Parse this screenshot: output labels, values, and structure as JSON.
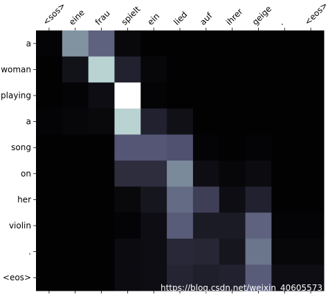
{
  "chart_data": {
    "type": "heatmap",
    "colormap": "bone",
    "vmin": 0,
    "vmax": 1,
    "grid": false,
    "x_tick_labels": [
      "<sos>",
      "eine",
      "frau",
      "spielt",
      "ein",
      "lied",
      "auf",
      "ihrer",
      "geige",
      ".",
      "<eos>"
    ],
    "y_tick_labels": [
      "a",
      "woman",
      "playing",
      "a",
      "song",
      "on",
      "her",
      "violin",
      ".",
      "<eos>"
    ],
    "values": [
      [
        0.02,
        0.58,
        0.42,
        0.04,
        0.01,
        0.01,
        0.01,
        0.01,
        0.01,
        0.01,
        0.01
      ],
      [
        0.01,
        0.08,
        0.8,
        0.15,
        0.03,
        0.01,
        0.01,
        0.01,
        0.01,
        0.01,
        0.01
      ],
      [
        0.01,
        0.02,
        0.06,
        1.0,
        0.02,
        0.01,
        0.01,
        0.01,
        0.01,
        0.01,
        0.01
      ],
      [
        0.02,
        0.03,
        0.04,
        0.8,
        0.15,
        0.07,
        0.01,
        0.01,
        0.01,
        0.01,
        0.01
      ],
      [
        0.01,
        0.01,
        0.01,
        0.38,
        0.38,
        0.36,
        0.02,
        0.01,
        0.02,
        0.01,
        0.01
      ],
      [
        0.01,
        0.01,
        0.01,
        0.2,
        0.2,
        0.55,
        0.06,
        0.03,
        0.05,
        0.01,
        0.01
      ],
      [
        0.01,
        0.01,
        0.01,
        0.04,
        0.1,
        0.45,
        0.28,
        0.06,
        0.15,
        0.01,
        0.01
      ],
      [
        0.01,
        0.01,
        0.01,
        0.02,
        0.06,
        0.4,
        0.12,
        0.12,
        0.42,
        0.02,
        0.02
      ],
      [
        0.01,
        0.01,
        0.01,
        0.05,
        0.06,
        0.18,
        0.17,
        0.1,
        0.48,
        0.03,
        0.03
      ],
      [
        0.01,
        0.01,
        0.01,
        0.05,
        0.06,
        0.16,
        0.14,
        0.15,
        0.4,
        0.06,
        0.06
      ]
    ]
  },
  "watermark": "https://blog.csdn.net/weixin_40605573"
}
